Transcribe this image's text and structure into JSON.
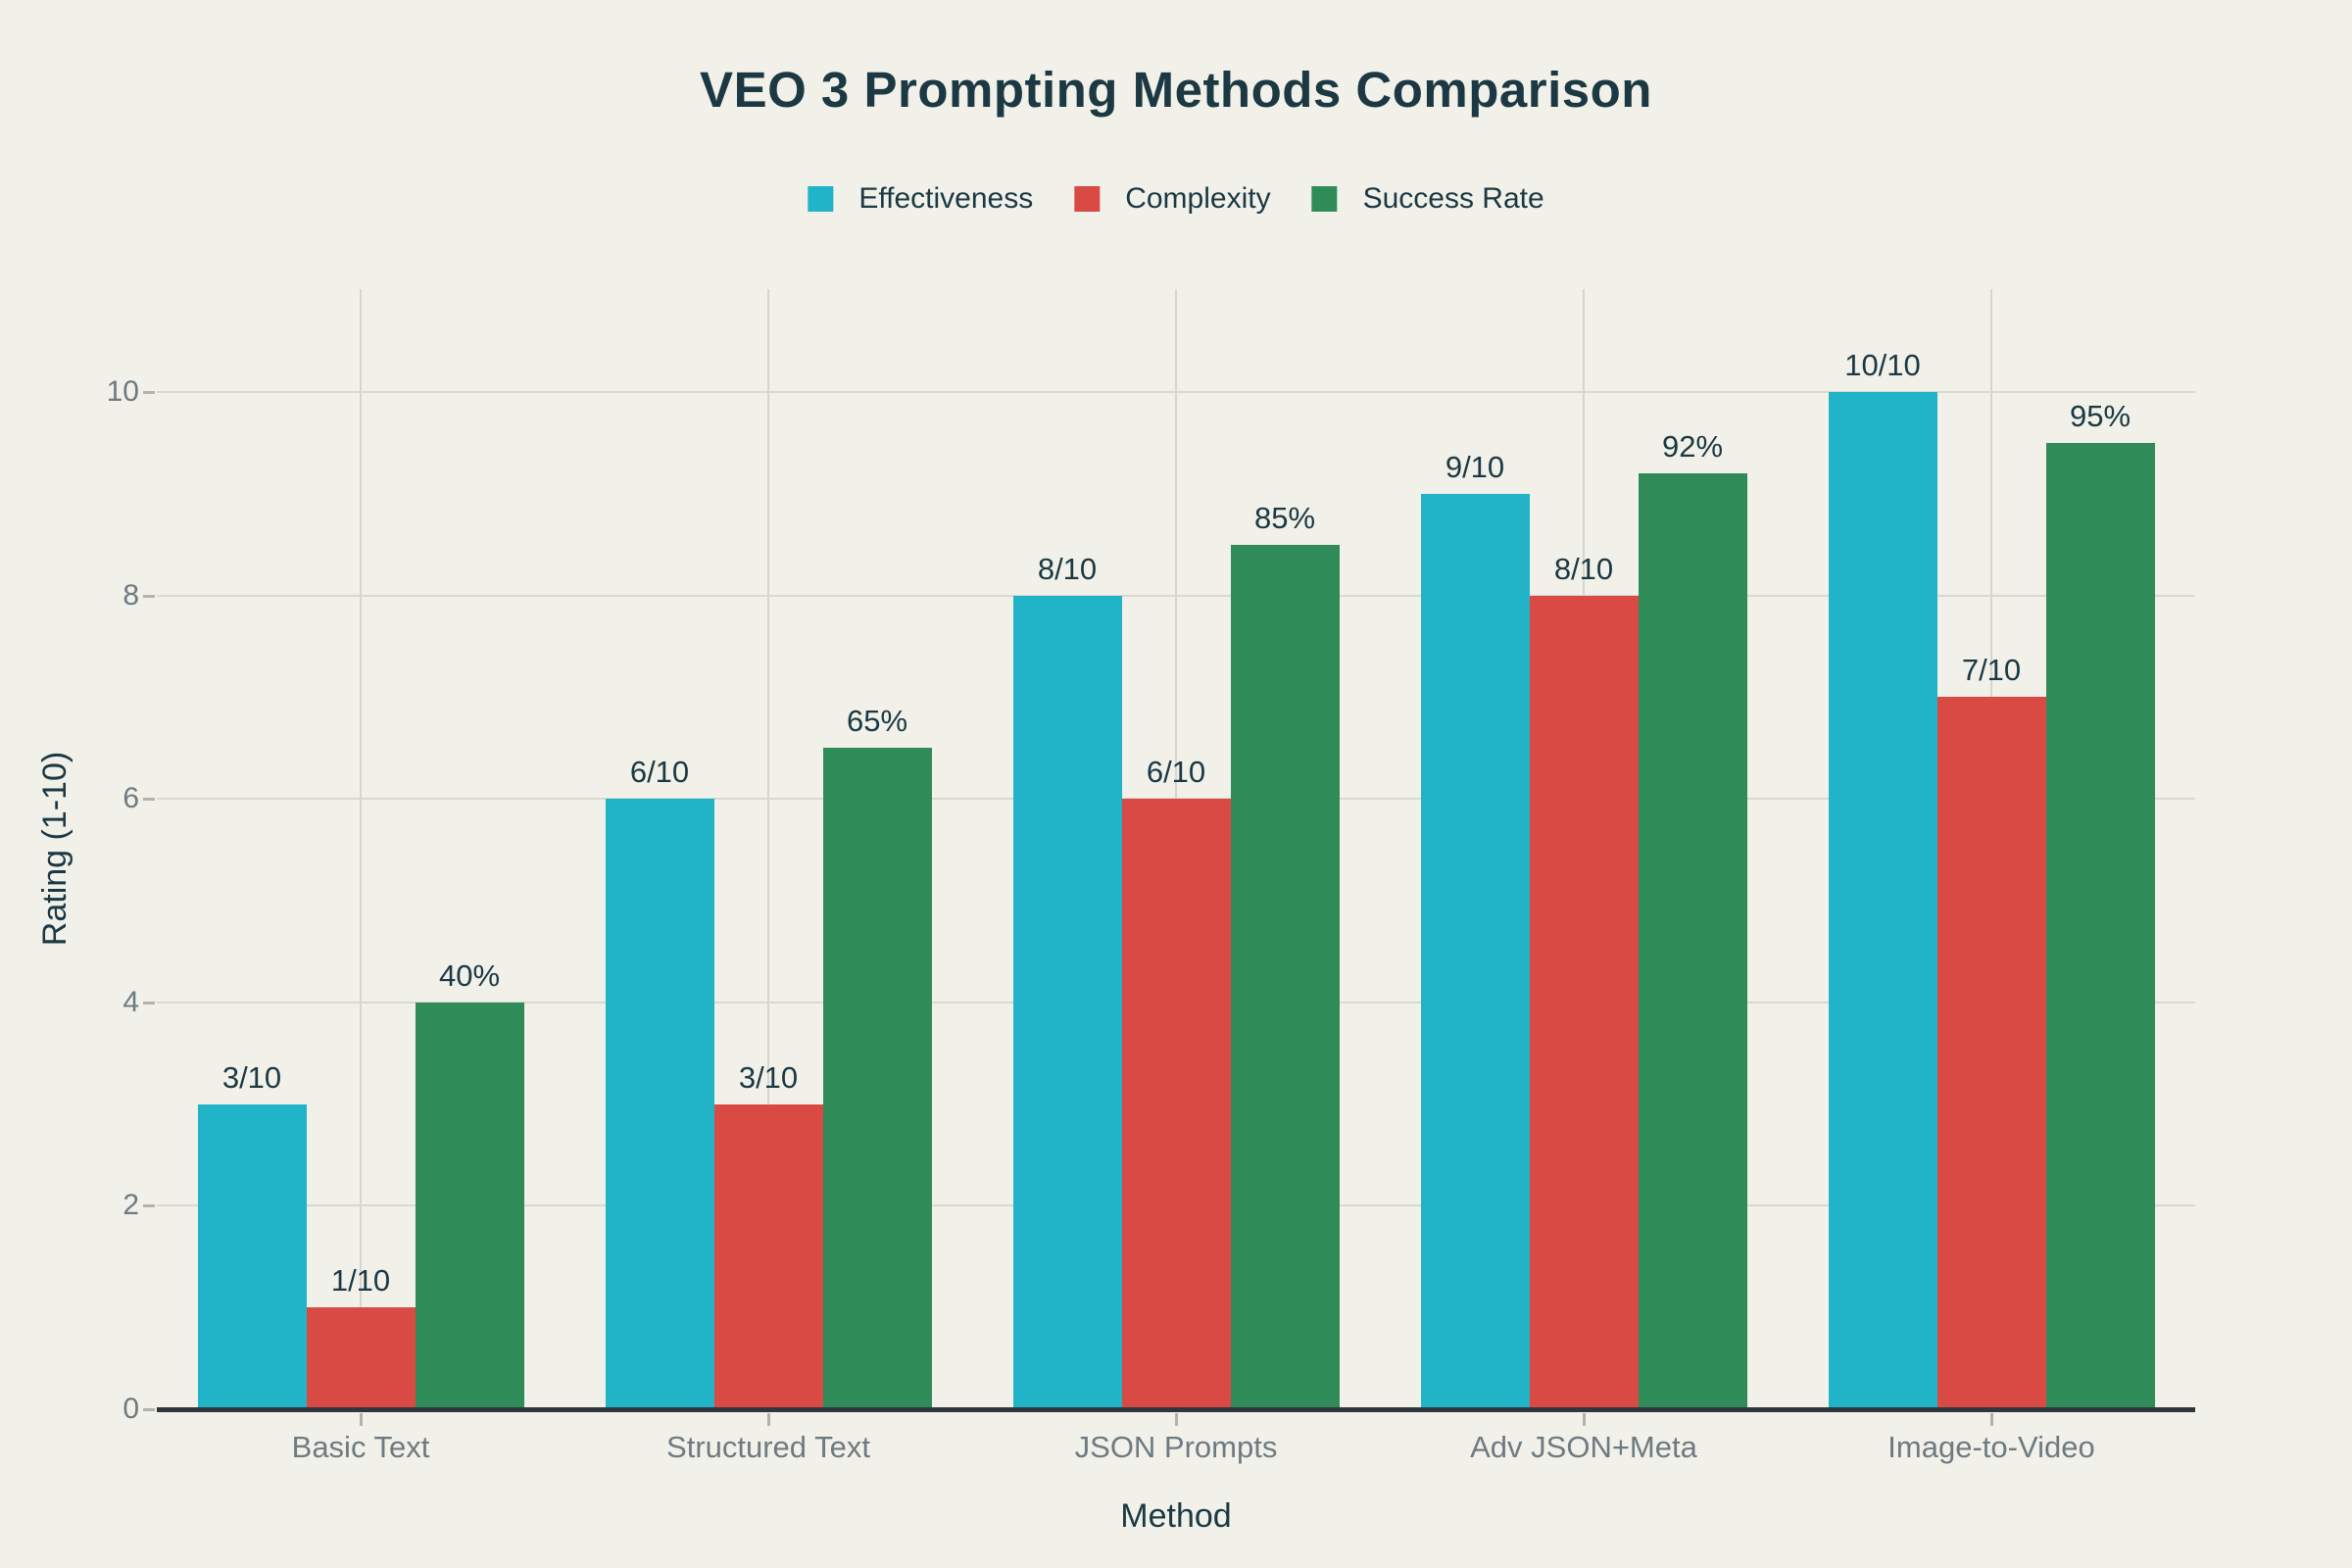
{
  "title": "VEO 3 Prompting Methods Comparison",
  "axes": {
    "x_title": "Method",
    "y_title": "Rating (1-10)",
    "y_tick_labels": [
      "0",
      "2",
      "4",
      "6",
      "8",
      "10"
    ]
  },
  "colors": {
    "background": "#f1f1e9",
    "text_dark": "#1b3843",
    "tick_text": "#6e7a81",
    "gridline": "#d9d9d0",
    "axis_line": "#30373b",
    "effectiveness": "#21b3c7",
    "complexity": "#d94a44",
    "success_rate": "#2f8b57"
  },
  "chart_data": {
    "type": "bar",
    "title": "VEO 3 Prompting Methods Comparison",
    "xlabel": "Method",
    "ylabel": "Rating (1-10)",
    "categories": [
      "Basic Text",
      "Structured Text",
      "JSON Prompts",
      "Adv JSON+Meta",
      "Image-to-Video"
    ],
    "series": [
      {
        "name": "Effectiveness",
        "color": "#21b3c7",
        "values": [
          3,
          6,
          8,
          9,
          10
        ],
        "labels": [
          "3/10",
          "6/10",
          "8/10",
          "9/10",
          "10/10"
        ]
      },
      {
        "name": "Complexity",
        "color": "#d94a44",
        "values": [
          1,
          3,
          6,
          8,
          7
        ],
        "labels": [
          "1/10",
          "3/10",
          "6/10",
          "8/10",
          "7/10"
        ]
      },
      {
        "name": "Success Rate",
        "color": "#2f8b57",
        "values": [
          4.0,
          6.5,
          8.5,
          9.2,
          9.5
        ],
        "labels": [
          "40%",
          "65%",
          "85%",
          "92%",
          "95%"
        ]
      }
    ],
    "yticks": [
      0,
      2,
      4,
      6,
      8,
      10
    ],
    "ylim": [
      0,
      10
    ],
    "grid": true,
    "legend_position": "top-center"
  }
}
